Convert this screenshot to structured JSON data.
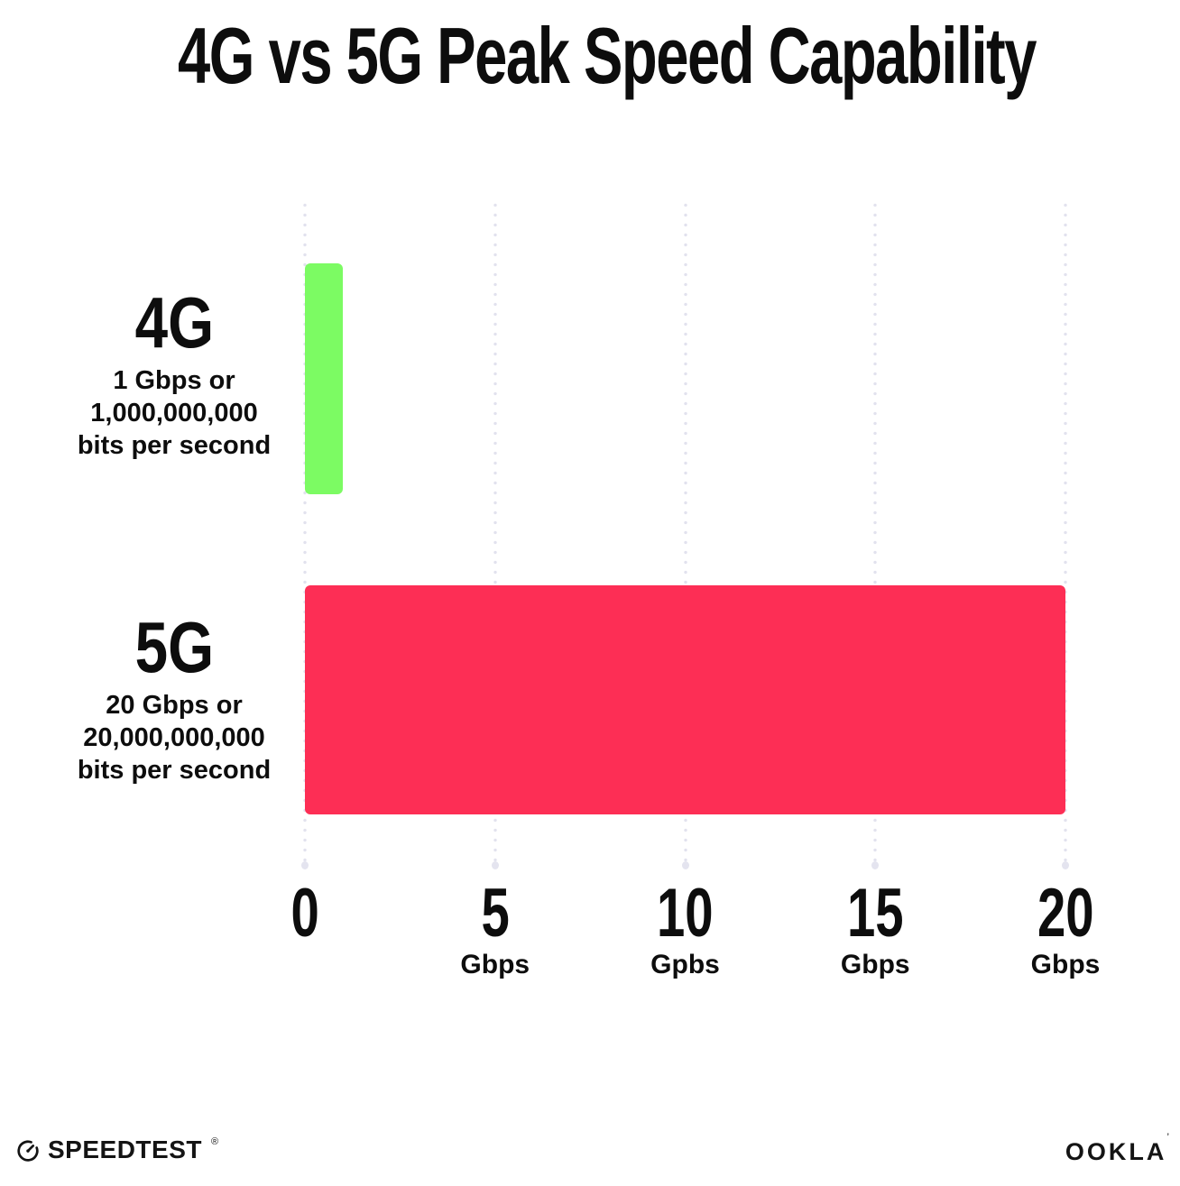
{
  "title": "4G vs 5G Peak Speed Capability",
  "chart_data": {
    "type": "bar",
    "orientation": "horizontal",
    "title": "4G vs 5G Peak Speed Capability",
    "xlabel": "",
    "ylabel": "",
    "xlim": [
      0,
      20
    ],
    "grid": "dotted-vertical-gridlines",
    "legend": "none",
    "x_ticks": [
      {
        "value": 0,
        "label": "0",
        "unit": ""
      },
      {
        "value": 5,
        "label": "5",
        "unit": "Gbps"
      },
      {
        "value": 10,
        "label": "10",
        "unit": "Gpbs"
      },
      {
        "value": 15,
        "label": "15",
        "unit": "Gbps"
      },
      {
        "value": 20,
        "label": "20",
        "unit": "Gbps"
      }
    ],
    "rows": [
      {
        "label": "4G",
        "sublabel": [
          "1 Gbps or",
          "1,000,000,000",
          "bits per second"
        ],
        "value": 1,
        "color": "#7cfb63"
      },
      {
        "label": "5G",
        "sublabel": [
          "20 Gbps or",
          "20,000,000,000",
          "bits per second"
        ],
        "value": 20,
        "color": "#fd2e55"
      }
    ]
  },
  "footer": {
    "speedtest_label": "SPEEDTEST",
    "speedtest_mark": "®",
    "ookla_label": "OOKLA",
    "ookla_mark": "’"
  },
  "colors": {
    "bar_4g": "#7cfb63",
    "bar_5g": "#fd2e55",
    "grid_dot": "#e2e2ee",
    "text": "#0d0d0d",
    "background": "#ffffff"
  }
}
